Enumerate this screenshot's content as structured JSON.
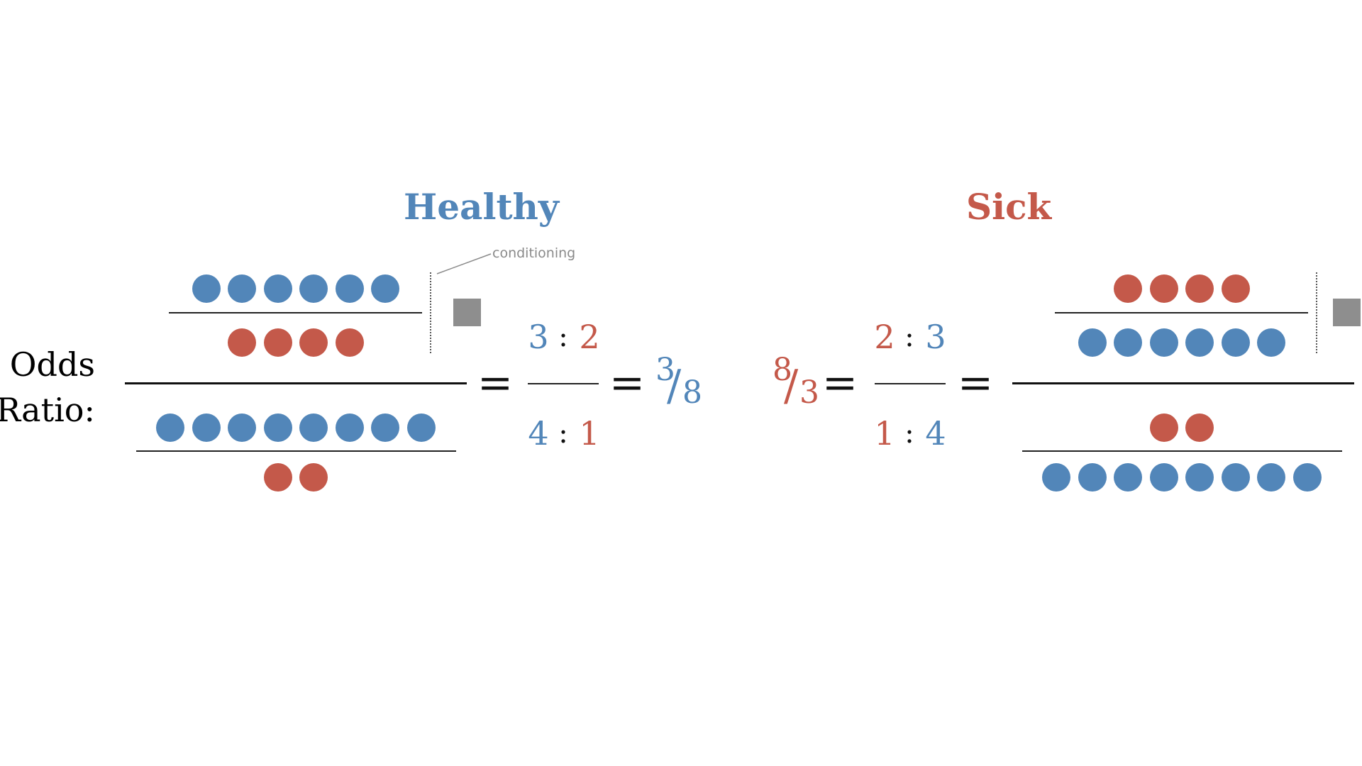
{
  "colors": {
    "healthy": "#5286b9",
    "sick": "#c4594a",
    "condition_square": "#8e8e8e",
    "text": "#111111"
  },
  "titles": {
    "healthy": "Healthy",
    "sick": "Sick"
  },
  "label": {
    "line1": "Odds",
    "line2": "Ratio:"
  },
  "annotation": "conditioning",
  "equals_symbol": "=",
  "colon_symbol": ":",
  "slash_symbol": "/",
  "left": {
    "top_fraction": {
      "numerator": {
        "color": "healthy",
        "count": 6
      },
      "denominator": {
        "color": "sick",
        "count": 4
      }
    },
    "bottom_fraction": {
      "numerator": {
        "color": "healthy",
        "count": 8
      },
      "denominator": {
        "color": "sick",
        "count": 2
      }
    },
    "ratio_top": {
      "a": "3",
      "b": "2"
    },
    "ratio_bottom": {
      "a": "4",
      "b": "1"
    },
    "result": {
      "numerator": "3",
      "denominator": "8"
    }
  },
  "right": {
    "top_fraction": {
      "numerator": {
        "color": "sick",
        "count": 4
      },
      "denominator": {
        "color": "healthy",
        "count": 6
      }
    },
    "bottom_fraction": {
      "numerator": {
        "color": "sick",
        "count": 2
      },
      "denominator": {
        "color": "healthy",
        "count": 8
      }
    },
    "ratio_top": {
      "a": "2",
      "b": "3"
    },
    "ratio_bottom": {
      "a": "1",
      "b": "4"
    },
    "result": {
      "numerator": "8",
      "denominator": "3"
    }
  }
}
